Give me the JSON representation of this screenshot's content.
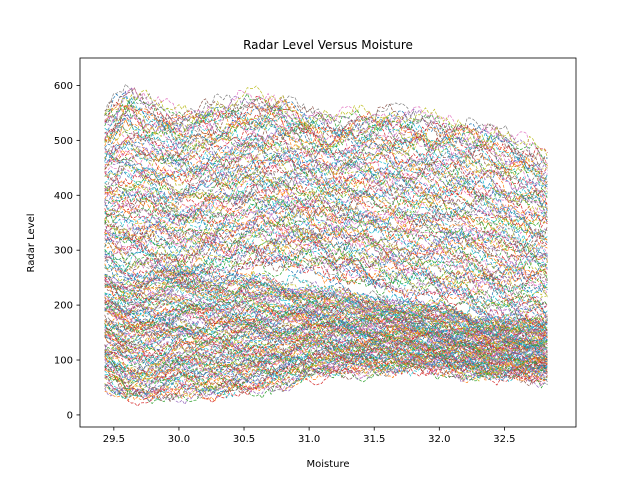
{
  "chart_data": {
    "type": "line",
    "title": "Radar Level Versus Moisture",
    "xlabel": "Moisture",
    "ylabel": "Radar Level",
    "xlim": [
      29.24,
      33.05
    ],
    "ylim": [
      -22,
      650
    ],
    "x_range": [
      29.43,
      32.83
    ],
    "xticks": [
      29.5,
      30.0,
      30.5,
      31.0,
      31.5,
      32.0,
      32.5
    ],
    "xtick_labels": [
      "29.5",
      "30.0",
      "30.5",
      "31.0",
      "31.5",
      "32.0",
      "32.5"
    ],
    "yticks": [
      0,
      100,
      200,
      300,
      400,
      500,
      600
    ],
    "ytick_labels": [
      "0",
      "100",
      "200",
      "300",
      "400",
      "500",
      "600"
    ],
    "grid": false,
    "legend": "none",
    "line_style": "dashed",
    "series_count": 220,
    "palette": [
      "#1f77b4",
      "#ff7f0e",
      "#2ca02c",
      "#d62728",
      "#9467bd",
      "#8c564b",
      "#e377c2",
      "#7f7f7f",
      "#bcbd22",
      "#17becf"
    ],
    "upper_band": {
      "x": [
        29.43,
        29.6,
        29.8,
        30.0,
        30.2,
        30.4,
        30.6,
        30.8,
        31.0,
        31.2,
        31.4,
        31.6,
        31.8,
        32.0,
        32.2,
        32.4,
        32.6,
        32.83
      ],
      "top": [
        560,
        600,
        575,
        555,
        570,
        575,
        585,
        580,
        555,
        545,
        555,
        560,
        555,
        545,
        535,
        530,
        505,
        480
      ],
      "bottom": [
        270,
        255,
        260,
        240,
        255,
        260,
        270,
        265,
        270,
        250,
        240,
        225,
        220,
        210,
        200,
        180,
        170,
        165
      ]
    },
    "lower_band": {
      "x": [
        29.43,
        29.6,
        29.8,
        30.0,
        30.2,
        30.4,
        30.6,
        30.8,
        31.0,
        31.2,
        31.4,
        31.6,
        31.8,
        32.0,
        32.2,
        32.4,
        32.6,
        32.83
      ],
      "top": [
        265,
        250,
        255,
        265,
        255,
        250,
        250,
        240,
        235,
        225,
        215,
        210,
        200,
        195,
        185,
        175,
        170,
        165
      ],
      "bottom": [
        55,
        30,
        25,
        40,
        35,
        40,
        45,
        55,
        70,
        75,
        80,
        80,
        85,
        80,
        75,
        70,
        70,
        65
      ]
    }
  }
}
